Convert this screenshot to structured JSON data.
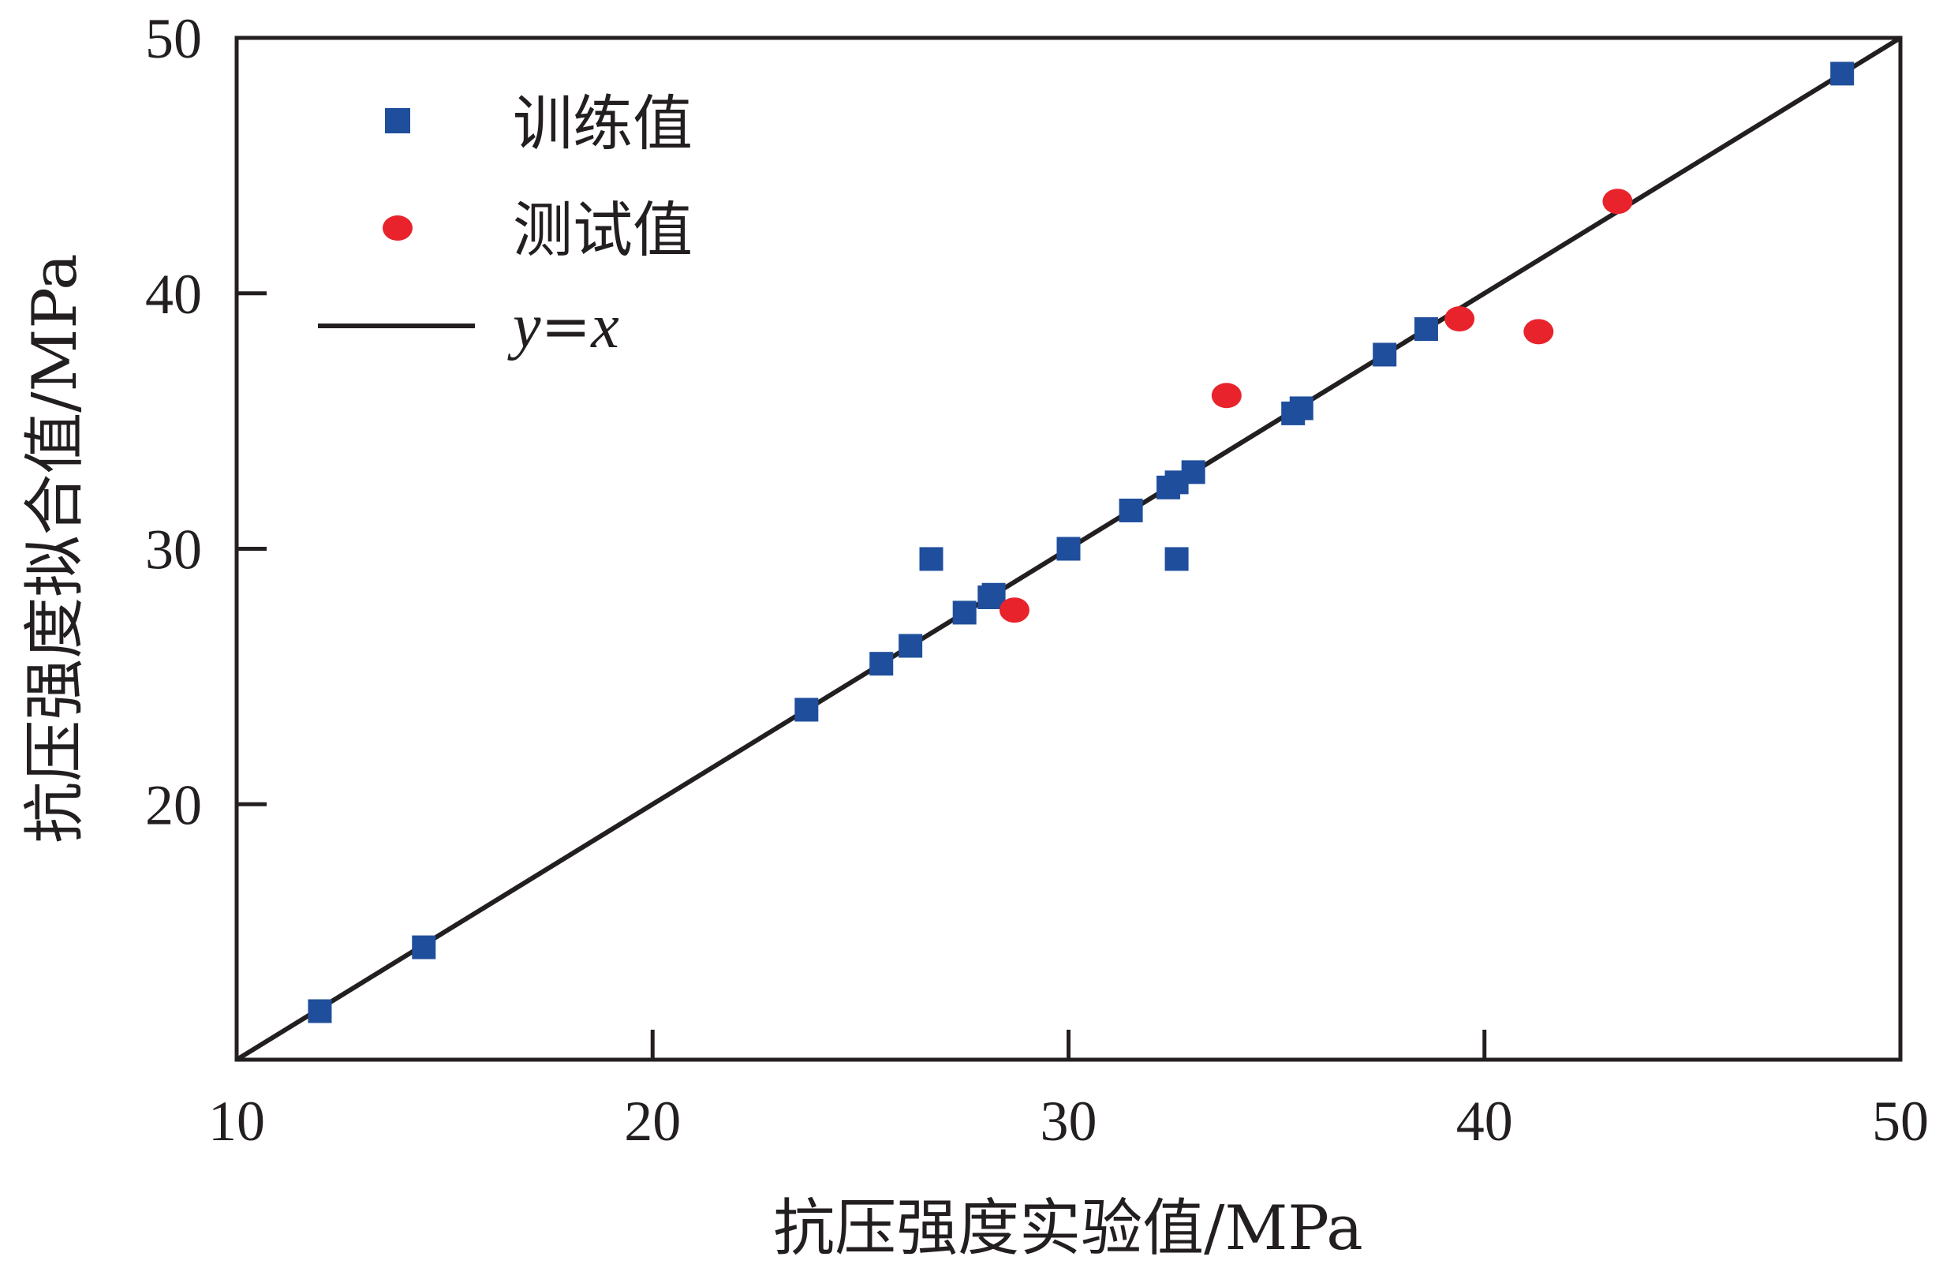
{
  "chart_data": {
    "type": "scatter",
    "xlabel": "抗压强度实验值/MPa",
    "ylabel": "抗压强度拟合值/MPa",
    "xlim": [
      10,
      50
    ],
    "ylim": [
      10,
      50
    ],
    "x_ticks": [
      "10",
      "20",
      "30",
      "40",
      "50"
    ],
    "y_ticks": [
      "20",
      "30",
      "40",
      "50"
    ],
    "grid": false,
    "legend_position": "top-left",
    "series": [
      {
        "name": "训练值",
        "marker": "square",
        "color": "#1f4e9c",
        "points": [
          [
            12.0,
            11.9
          ],
          [
            14.5,
            14.4
          ],
          [
            23.7,
            23.7
          ],
          [
            25.5,
            25.5
          ],
          [
            26.2,
            26.2
          ],
          [
            26.7,
            29.6
          ],
          [
            27.5,
            27.5
          ],
          [
            28.1,
            28.1
          ],
          [
            28.2,
            28.2
          ],
          [
            30.0,
            30.0
          ],
          [
            31.5,
            31.5
          ],
          [
            32.4,
            32.4
          ],
          [
            32.6,
            32.6
          ],
          [
            32.6,
            29.6
          ],
          [
            33.0,
            33.0
          ],
          [
            35.4,
            35.3
          ],
          [
            35.6,
            35.5
          ],
          [
            37.6,
            37.6
          ],
          [
            38.6,
            38.6
          ],
          [
            48.6,
            48.6
          ]
        ]
      },
      {
        "name": "测试值",
        "marker": "circle",
        "color": "#e8232b",
        "points": [
          [
            28.7,
            27.6
          ],
          [
            33.8,
            36.0
          ],
          [
            39.4,
            39.0
          ],
          [
            41.3,
            38.5
          ],
          [
            43.2,
            43.6
          ]
        ]
      },
      {
        "name_prefix": "y",
        "name_eq": "=",
        "name_suffix": "x",
        "type": "line",
        "color": "#231f20",
        "points": [
          [
            10.0,
            10.0
          ],
          [
            50.0,
            50.0
          ]
        ]
      }
    ]
  }
}
